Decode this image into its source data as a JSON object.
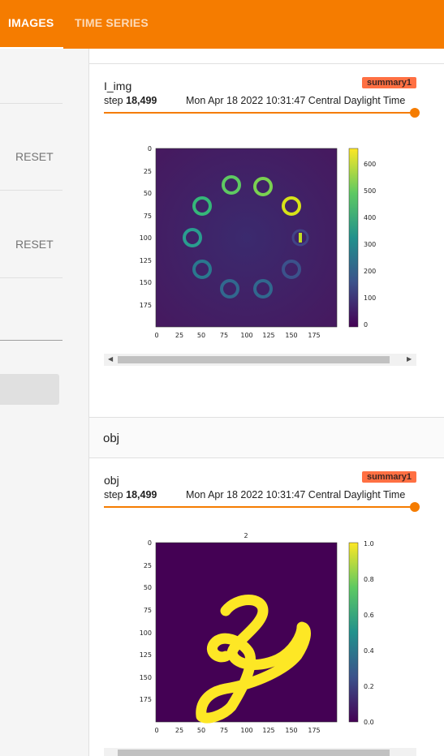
{
  "topbar": {
    "tabs": [
      {
        "label": "IMAGES",
        "active": true
      },
      {
        "label": "TIME SERIES",
        "active": false
      }
    ],
    "color": "#f57c00"
  },
  "sidebar": {
    "reset1": "RESET",
    "reset2": "RESET"
  },
  "cards": [
    {
      "title": "I_img",
      "badge": "summary1",
      "step_label": "step",
      "step_value": "18,499",
      "timestamp": "Mon Apr 18 2022 10:31:47 Central Daylight Time",
      "slider_fraction": 1.0,
      "image": {
        "plot_title": "",
        "x_ticks": [
          "0",
          "25",
          "50",
          "75",
          "100",
          "125",
          "150",
          "175"
        ],
        "y_ticks": [
          "0",
          "25",
          "50",
          "75",
          "100",
          "125",
          "150",
          "175"
        ],
        "colorbar_ticks": [
          "0",
          "100",
          "200",
          "300",
          "400",
          "500",
          "600"
        ],
        "colormap": "viridis"
      }
    },
    {
      "title": "obj",
      "badge": "summary1",
      "step_label": "step",
      "step_value": "18,499",
      "timestamp": "Mon Apr 18 2022 10:31:47 Central Daylight Time",
      "slider_fraction": 1.0,
      "image": {
        "plot_title": "2",
        "x_ticks": [
          "0",
          "25",
          "50",
          "75",
          "100",
          "125",
          "150",
          "175"
        ],
        "y_ticks": [
          "0",
          "25",
          "50",
          "75",
          "100",
          "125",
          "150",
          "175"
        ],
        "colorbar_ticks": [
          "0.0",
          "0.2",
          "0.4",
          "0.6",
          "0.8",
          "1.0"
        ],
        "colormap": "viridis"
      }
    }
  ],
  "section": {
    "title": "obj"
  }
}
